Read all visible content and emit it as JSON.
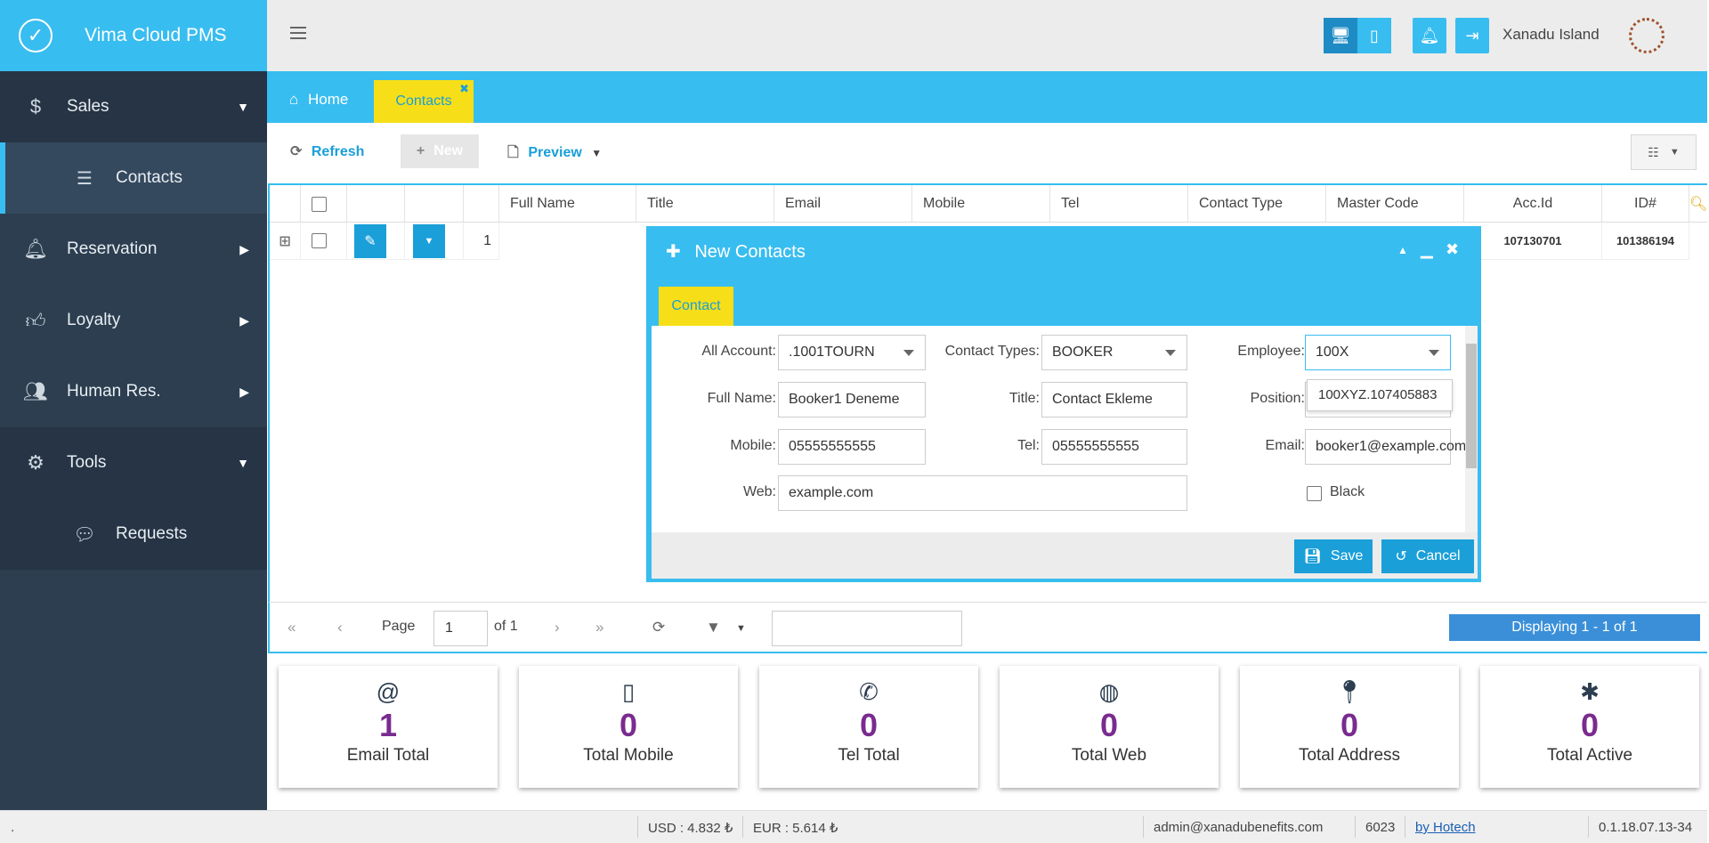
{
  "app": {
    "title": "Vima Cloud PMS"
  },
  "sidebar": {
    "items": [
      {
        "label": "Sales",
        "icon": "dollar-icon"
      },
      {
        "label": "Contacts",
        "icon": "list-icon"
      },
      {
        "label": "Reservation",
        "icon": "bell-icon"
      },
      {
        "label": "Loyalty",
        "icon": "thumbs-up-icon"
      },
      {
        "label": "Human Res.",
        "icon": "users-icon"
      },
      {
        "label": "Tools",
        "icon": "gears-icon"
      },
      {
        "label": "Requests",
        "icon": "comments-icon"
      }
    ]
  },
  "header": {
    "hotel_name": "Xanadu Island"
  },
  "tabs": {
    "home": "Home",
    "contacts": "Contacts"
  },
  "toolbar": {
    "refresh": "Refresh",
    "new": "New",
    "preview": "Preview"
  },
  "grid": {
    "columns": [
      "Full Name",
      "Title",
      "Email",
      "Mobile",
      "Tel",
      "Contact Type",
      "Master Code",
      "Acc.Id",
      "ID#"
    ],
    "rows": [
      {
        "num": "1",
        "acc_id": "107130701",
        "id": "101386194"
      }
    ]
  },
  "pager": {
    "page_label": "Page",
    "page_value": "1",
    "of_label": "of 1",
    "displaying": "Displaying 1 - 1 of 1"
  },
  "stats": [
    {
      "value": "1",
      "label": "Email Total",
      "icon": "at-icon"
    },
    {
      "value": "0",
      "label": "Total Mobile",
      "icon": "mobile-icon"
    },
    {
      "value": "0",
      "label": "Tel Total",
      "icon": "phone-icon"
    },
    {
      "value": "0",
      "label": "Total Web",
      "icon": "globe-icon"
    },
    {
      "value": "0",
      "label": "Total Address",
      "icon": "pin-icon"
    },
    {
      "value": "0",
      "label": "Total Active",
      "icon": "asterisk-icon"
    }
  ],
  "statusbar": {
    "dot": ".",
    "usd": "USD : 4.832 ₺",
    "eur": "EUR : 5.614 ₺",
    "user": "admin@xanadubenefits.com",
    "code": "6023",
    "by": "by Hotech",
    "version": "0.1.18.07.13-34"
  },
  "dialog": {
    "title": "New Contacts",
    "tab": "Contact",
    "fields": {
      "all_account": {
        "label": "All Account:",
        "value": ".1001TOURN"
      },
      "contact_types": {
        "label": "Contact Types:",
        "value": "BOOKER"
      },
      "employee": {
        "label": "Employee:",
        "value": "100X",
        "suggestion": "100XYZ.107405883"
      },
      "full_name": {
        "label": "Full Name:",
        "value": "Booker1 Deneme"
      },
      "title": {
        "label": "Title:",
        "value": "Contact Ekleme"
      },
      "position": {
        "label": "Position:",
        "value": ""
      },
      "mobile": {
        "label": "Mobile:",
        "value": "05555555555"
      },
      "tel": {
        "label": "Tel:",
        "value": "05555555555"
      },
      "email": {
        "label": "Email:",
        "value": "booker1@example.com"
      },
      "web": {
        "label": "Web:",
        "value": "example.com"
      },
      "black": {
        "label": "Black"
      }
    },
    "save": "Save",
    "cancel": "Cancel"
  }
}
